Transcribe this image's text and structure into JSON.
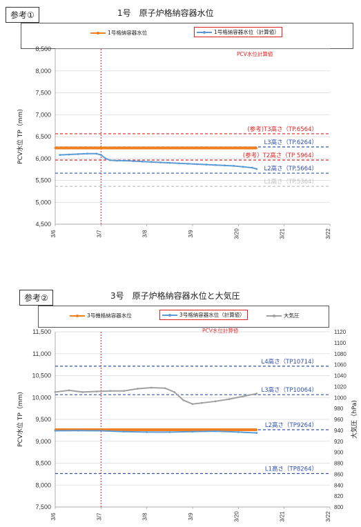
{
  "chart_data": [
    {
      "type": "line",
      "tag": "参考①",
      "title": "1号　原子炉格納容器水位",
      "ylabel": "PCV水位 TP（mm)",
      "ylim": [
        4500,
        8500
      ],
      "yticks": [
        "4,500",
        "5,000",
        "5,500",
        "6,000",
        "6,500",
        "7,000",
        "7,500",
        "8,000",
        "8,500"
      ],
      "xticks": [
        "3/6",
        "3/7",
        "3/8",
        "3/9",
        "3/20",
        "3/21",
        "3/22"
      ],
      "xrange": [
        0,
        6
      ],
      "vline_x": 1.0,
      "legend": {
        "s1": "1号格納容器水位",
        "s2": "1号格納容器水位（計算値）",
        "note": "PCV水位計算値"
      },
      "refs": [
        {
          "label": "(参考)T3高さ（TP.6564）",
          "y": 6564,
          "color": "#e02020"
        },
        {
          "label": "L3高さ（TP.6264）",
          "y": 6264,
          "color": "#3050b0"
        },
        {
          "label": "(参考）T2高さ（TP 5964）",
          "y": 5964,
          "color": "#e02020"
        },
        {
          "label": "L2高さ（TP.5664）",
          "y": 5664,
          "color": "#3050b0"
        },
        {
          "label": "L1高さ（TP.5364）",
          "y": 5364,
          "color": "#c0c0c0"
        }
      ],
      "series": [
        {
          "name": "1号格納容器水位",
          "color": "#f07f20",
          "x": [
            0,
            4.4
          ],
          "y": [
            6240,
            6240
          ]
        },
        {
          "name": "1号格納容器水位（計算値）",
          "color": "#5b9bd5",
          "x": [
            0.1,
            0.3,
            0.5,
            0.7,
            0.9,
            1.0,
            1.1,
            1.2,
            1.35,
            1.5,
            1.7,
            1.9,
            2.1,
            2.3,
            2.5,
            2.7,
            2.9,
            3.1,
            3.3,
            3.5,
            3.7,
            3.9,
            4.1,
            4.3,
            4.4
          ],
          "y": [
            6080,
            6090,
            6100,
            6110,
            6110,
            6080,
            6000,
            5960,
            5950,
            5950,
            5940,
            5930,
            5920,
            5910,
            5900,
            5890,
            5880,
            5870,
            5860,
            5850,
            5840,
            5830,
            5810,
            5790,
            5760
          ]
        }
      ]
    },
    {
      "type": "line",
      "tag": "参考②",
      "title": "3号　原子炉格納容器水位と大気圧",
      "ylabel": "PCV水位 TP（mm)",
      "y2label": "大気圧（hPa)",
      "ylim": [
        7500,
        11500
      ],
      "y2lim": [
        800,
        1120
      ],
      "yticks": [
        "7,500",
        "8,000",
        "8,500",
        "9,000",
        "9,500",
        "10,000",
        "10,500",
        "11,000",
        "11,500"
      ],
      "y2ticks": [
        "800",
        "820",
        "840",
        "860",
        "880",
        "900",
        "920",
        "940",
        "960",
        "980",
        "1000",
        "1020",
        "1040",
        "1060",
        "1080",
        "1100",
        "1120"
      ],
      "xticks": [
        "3/6",
        "3/7",
        "3/8",
        "3/9",
        "3/20",
        "3/21",
        "3/22"
      ],
      "xrange": [
        0,
        6
      ],
      "vline_x": 1.0,
      "legend": {
        "s1": "3号機格納容器水位",
        "s2": "3号格納容器水位（計算値）",
        "s3": "大気圧",
        "note": "PCV水位計算値"
      },
      "refs": [
        {
          "label": "L4高さ（TP10714）",
          "y": 10714,
          "color": "#3050b0"
        },
        {
          "label": "L3高さ（TP10064）",
          "y": 10064,
          "color": "#3050b0"
        },
        {
          "label": "L2高さ（TP9264）",
          "y": 9264,
          "color": "#3050b0"
        },
        {
          "label": "L1高さ（TP8264）",
          "y": 8264,
          "color": "#3050b0"
        }
      ],
      "series": [
        {
          "name": "3号機格納容器水位",
          "color": "#f07f20",
          "x": [
            0,
            4.4
          ],
          "y": [
            9264,
            9264
          ]
        },
        {
          "name": "3号格納容器水位（計算値）",
          "color": "#5b9bd5",
          "x": [
            0,
            0.5,
            1.0,
            1.5,
            2.0,
            2.5,
            3.0,
            3.5,
            4.0,
            4.4
          ],
          "y": [
            9240,
            9245,
            9240,
            9220,
            9210,
            9210,
            9220,
            9230,
            9210,
            9190
          ]
        },
        {
          "name": "大気圧",
          "color": "#a0a0a0",
          "axis": "y2",
          "x": [
            0,
            0.3,
            0.6,
            0.9,
            1.2,
            1.5,
            1.8,
            2.1,
            2.4,
            2.6,
            2.8,
            3.0,
            3.2,
            3.5,
            3.8,
            4.1,
            4.4
          ],
          "y": [
            1010,
            1013,
            1010,
            1011,
            1012,
            1012,
            1016,
            1018,
            1017,
            1010,
            995,
            988,
            990,
            993,
            997,
            1002,
            1007
          ]
        }
      ]
    }
  ]
}
